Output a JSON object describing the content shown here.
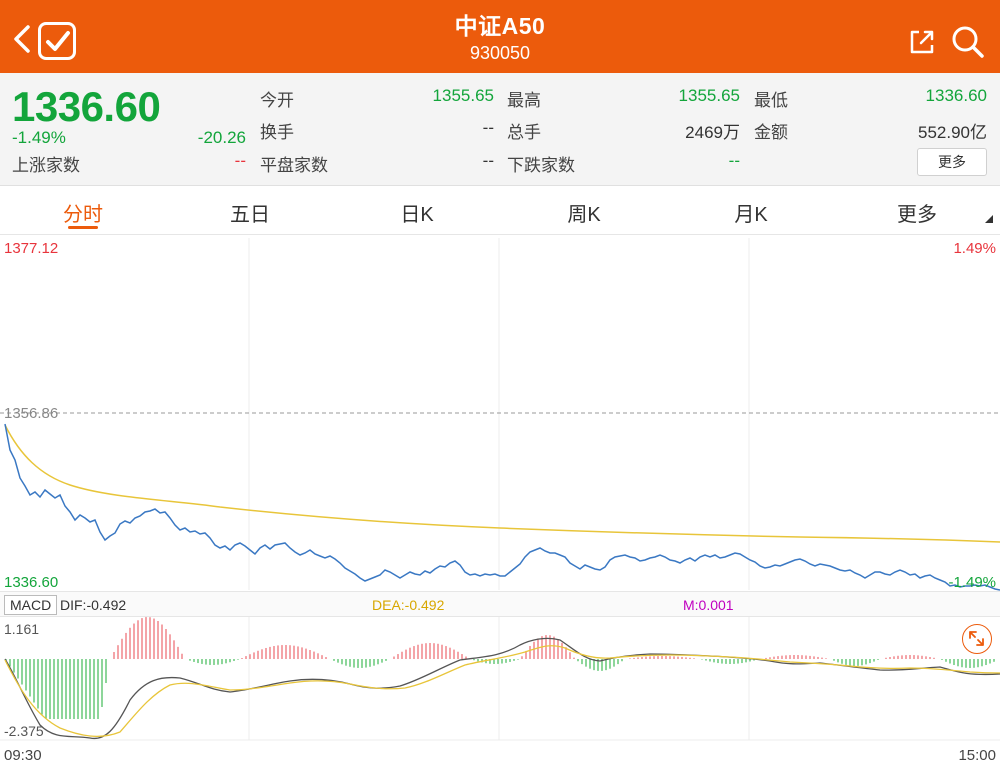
{
  "header": {
    "title": "中证A50",
    "code": "930050"
  },
  "quote": {
    "price": "1336.60",
    "change_pct": "-1.49%",
    "change": "-20.26",
    "up_count_label": "上涨家数",
    "up_count_value": "--",
    "open_label": "今开",
    "open_value": "1355.65",
    "high_label": "最高",
    "high_value": "1355.65",
    "low_label": "最低",
    "low_value": "1336.60",
    "turnover_label": "换手",
    "turnover_value": "--",
    "volume_label": "总手",
    "volume_value": "2469万",
    "amount_label": "金额",
    "amount_value": "552.90亿",
    "flat_count_label": "平盘家数",
    "flat_count_value": "--",
    "down_count_label": "下跌家数",
    "down_count_value": "--",
    "more_label": "更多"
  },
  "tabs": [
    {
      "label": "分时",
      "active": true
    },
    {
      "label": "五日",
      "active": false
    },
    {
      "label": "日K",
      "active": false
    },
    {
      "label": "周K",
      "active": false
    },
    {
      "label": "月K",
      "active": false
    },
    {
      "label": "更多",
      "active": false
    }
  ],
  "chart": {
    "price_top": "1377.12",
    "pct_top": "1.49%",
    "price_mid": "1356.86",
    "price_bottom": "1336.60",
    "pct_bottom": "-1.49%",
    "macd_label": "MACD",
    "dif": "DIF:-0.492",
    "dea": "DEA:-0.492",
    "m": "M:0.001",
    "macd_top": "1.161",
    "macd_bottom": "-2.375",
    "time_start": "09:30",
    "time_end": "15:00"
  },
  "colors": {
    "header_bg": "#ec5b0c",
    "down_green": "#13a53b",
    "up_red": "#e8343c",
    "price_line": "#3a78c3",
    "avg_line": "#e8c53a"
  }
}
